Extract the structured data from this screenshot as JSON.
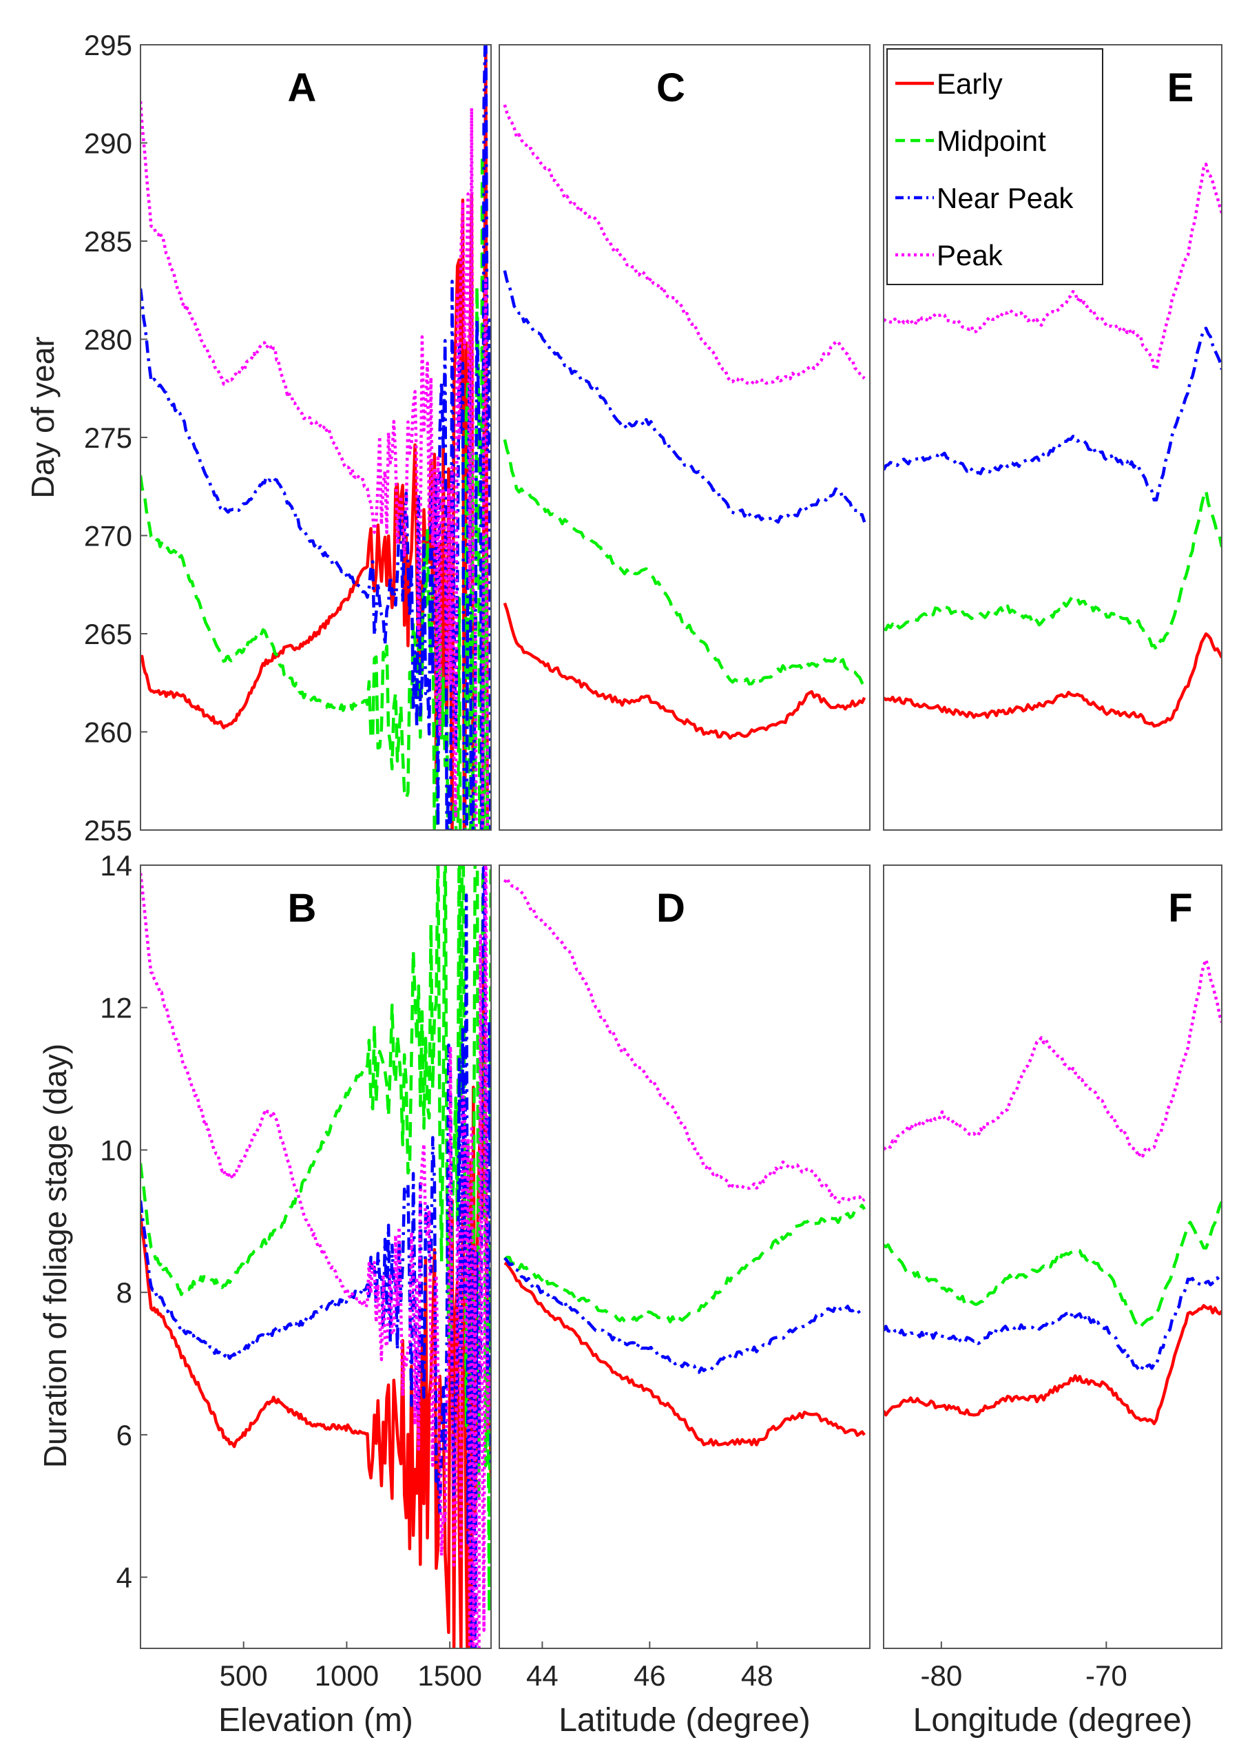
{
  "figure": {
    "ylabel_top": "Day of year",
    "ylabel_bottom": "Duration of foliage stage (day)"
  },
  "legend": {
    "placement": "top-right of panel E",
    "entries": [
      {
        "name": "Early",
        "color": "#ff0000",
        "style": "solid"
      },
      {
        "name": "Midpoint",
        "color": "#00ee00",
        "style": "dashed"
      },
      {
        "name": "Near Peak",
        "color": "#0000ff",
        "style": "dashdot"
      },
      {
        "name": "Peak",
        "color": "#ff00ff",
        "style": "dotted"
      }
    ]
  },
  "chart_data": [
    {
      "panel": "A",
      "type": "line",
      "xlabel": "",
      "ylabel": "Day of year",
      "xlim": [
        0,
        1700
      ],
      "ylim": [
        255,
        295
      ],
      "xticks": [],
      "yticks": [
        255,
        260,
        265,
        270,
        275,
        280,
        285,
        290,
        295
      ],
      "noise_from": 1100,
      "series": [
        {
          "name": "Early",
          "x": [
            0,
            50,
            100,
            200,
            300,
            400,
            450,
            500,
            600,
            700,
            800,
            900,
            1000,
            1100
          ],
          "y": [
            264,
            262,
            262,
            261.8,
            261,
            260.3,
            260.5,
            261.2,
            263.5,
            264.2,
            264.5,
            265.5,
            266.8,
            268.5
          ]
        },
        {
          "name": "Midpoint",
          "x": [
            0,
            50,
            100,
            200,
            300,
            400,
            450,
            500,
            600,
            700,
            800,
            900,
            1000,
            1100
          ],
          "y": [
            273,
            270,
            269.5,
            269,
            266,
            263.6,
            263.8,
            264.2,
            265.2,
            263,
            261.8,
            261.4,
            261.2,
            261.5
          ]
        },
        {
          "name": "Near Peak",
          "x": [
            0,
            50,
            100,
            200,
            300,
            400,
            450,
            500,
            600,
            650,
            700,
            800,
            900,
            1000,
            1100
          ],
          "y": [
            282.5,
            278,
            277.5,
            276,
            273.5,
            271.2,
            271.3,
            271.5,
            272.8,
            273,
            272,
            270,
            269,
            268,
            267
          ]
        },
        {
          "name": "Peak",
          "x": [
            0,
            50,
            100,
            200,
            300,
            400,
            450,
            500,
            600,
            650,
            700,
            800,
            900,
            1000,
            1100
          ],
          "y": [
            292,
            285.8,
            285.3,
            282,
            280,
            277.8,
            278,
            278.5,
            279.8,
            279.5,
            277.5,
            276,
            275.5,
            273.5,
            272.5
          ]
        }
      ]
    },
    {
      "panel": "C",
      "type": "line",
      "xlabel": "",
      "ylabel": "",
      "xlim": [
        43.2,
        50.1
      ],
      "ylim": [
        255,
        295
      ],
      "xticks": [],
      "yticks": [],
      "series": [
        {
          "name": "Early",
          "x": [
            43.3,
            43.5,
            44,
            44.5,
            45,
            45.5,
            46,
            46.5,
            47,
            47.5,
            48,
            48.5,
            49,
            49.5,
            50
          ],
          "y": [
            266.5,
            264.5,
            263.5,
            262.8,
            262,
            261.5,
            261.7,
            260.8,
            260,
            259.8,
            260,
            260.5,
            262,
            261.2,
            261.6
          ]
        },
        {
          "name": "Midpoint",
          "x": [
            43.3,
            43.5,
            44,
            44.5,
            45,
            45.5,
            46,
            46.5,
            47,
            47.5,
            48,
            48.5,
            49,
            49.5,
            50
          ],
          "y": [
            275,
            272.5,
            271.5,
            270.5,
            269.5,
            268.2,
            268.2,
            266,
            264.5,
            262.7,
            262.5,
            263.3,
            263.4,
            263.8,
            262.4
          ]
        },
        {
          "name": "Near Peak",
          "x": [
            43.3,
            43.5,
            44,
            44.5,
            45,
            45.5,
            46,
            46.5,
            47,
            47.5,
            48,
            48.5,
            49,
            49.5,
            50
          ],
          "y": [
            283.5,
            281.5,
            280,
            278.5,
            277.5,
            275.5,
            275.8,
            274,
            273,
            271.3,
            271,
            270.8,
            271.5,
            272.3,
            270.8
          ]
        },
        {
          "name": "Peak",
          "x": [
            43.3,
            43.5,
            44,
            44.5,
            45,
            45.5,
            46,
            46.5,
            47,
            47.5,
            48,
            48.5,
            49,
            49.5,
            50
          ],
          "y": [
            292,
            290.5,
            289,
            287,
            286,
            284,
            283,
            282,
            280,
            278,
            277.8,
            278,
            278.5,
            279.8,
            278
          ]
        }
      ]
    },
    {
      "panel": "E",
      "type": "line",
      "xlabel": "",
      "ylabel": "",
      "xlim": [
        -83.5,
        -63
      ],
      "ylim": [
        255,
        295
      ],
      "xticks": [],
      "yticks": [],
      "series": [
        {
          "name": "Early",
          "x": [
            -83.5,
            -82,
            -80,
            -78,
            -76,
            -74,
            -72,
            -70,
            -68,
            -67,
            -66,
            -65,
            -64,
            -63
          ],
          "y": [
            261.8,
            261.5,
            261.2,
            260.8,
            261,
            261.4,
            262,
            261,
            260.8,
            260.2,
            260.8,
            262.5,
            265,
            263.8
          ]
        },
        {
          "name": "Midpoint",
          "x": [
            -83.5,
            -82,
            -80,
            -78,
            -76,
            -74,
            -72,
            -70,
            -68,
            -67,
            -66,
            -65,
            -64,
            -63
          ],
          "y": [
            265.3,
            265.5,
            266.3,
            265.8,
            266.3,
            265.5,
            266.8,
            266,
            265.5,
            264.2,
            265.5,
            268.5,
            272.3,
            269.5
          ]
        },
        {
          "name": "Near Peak",
          "x": [
            -83.5,
            -82,
            -80,
            -78,
            -76,
            -74,
            -72,
            -70,
            -68,
            -67,
            -66,
            -65,
            -64,
            -63
          ],
          "y": [
            273.5,
            273.8,
            274.2,
            273.2,
            273.5,
            274,
            275,
            274,
            273.5,
            271.8,
            275,
            277.5,
            280.8,
            278.5
          ]
        },
        {
          "name": "Peak",
          "x": [
            -83.5,
            -82,
            -80,
            -78,
            -76,
            -74,
            -72,
            -70,
            -68,
            -67,
            -66,
            -65,
            -64,
            -63
          ],
          "y": [
            281,
            280.8,
            281.2,
            280.5,
            281.5,
            280.8,
            282.3,
            280.8,
            280.2,
            278.5,
            282,
            284.5,
            289,
            286.5
          ]
        }
      ]
    },
    {
      "panel": "B",
      "type": "line",
      "xlabel": "Elevation (m)",
      "ylabel": "Duration of foliage stage (day)",
      "xlim": [
        0,
        1700
      ],
      "ylim": [
        3,
        14
      ],
      "xticks": [
        500,
        1000,
        1500
      ],
      "yticks": [
        4,
        6,
        8,
        10,
        12,
        14
      ],
      "noise_from": 1100,
      "series": [
        {
          "name": "Early",
          "x": [
            0,
            50,
            100,
            200,
            300,
            400,
            450,
            500,
            600,
            650,
            700,
            800,
            900,
            1000,
            1100
          ],
          "y": [
            9.1,
            7.8,
            7.7,
            7.1,
            6.6,
            6,
            5.85,
            6,
            6.4,
            6.5,
            6.4,
            6.2,
            6.1,
            6.1,
            6
          ]
        },
        {
          "name": "Midpoint",
          "x": [
            0,
            50,
            100,
            200,
            300,
            400,
            450,
            500,
            600,
            700,
            800,
            900,
            1000,
            1100
          ],
          "y": [
            9.8,
            8.6,
            8.4,
            8,
            8.2,
            8.1,
            8.2,
            8.4,
            8.7,
            9,
            9.6,
            10.2,
            10.8,
            11.2
          ]
        },
        {
          "name": "Near Peak",
          "x": [
            0,
            50,
            100,
            200,
            300,
            400,
            450,
            500,
            600,
            700,
            800,
            900,
            1000,
            1100
          ],
          "y": [
            9.3,
            8.1,
            7.9,
            7.5,
            7.3,
            7.1,
            7.1,
            7.2,
            7.4,
            7.5,
            7.6,
            7.8,
            7.9,
            8.1
          ]
        },
        {
          "name": "Peak",
          "x": [
            0,
            50,
            100,
            200,
            300,
            400,
            450,
            500,
            600,
            650,
            700,
            800,
            900,
            1000,
            1100
          ],
          "y": [
            13.9,
            12.5,
            12.2,
            11.3,
            10.5,
            9.7,
            9.6,
            9.9,
            10.5,
            10.5,
            10,
            9,
            8.5,
            8,
            7.8
          ]
        }
      ]
    },
    {
      "panel": "D",
      "type": "line",
      "xlabel": "Latitude (degree)",
      "ylabel": "",
      "xlim": [
        43.2,
        50.1
      ],
      "ylim": [
        3,
        14
      ],
      "xticks": [
        44,
        46,
        48
      ],
      "yticks": [],
      "series": [
        {
          "name": "Early",
          "x": [
            43.3,
            43.5,
            44,
            44.5,
            45,
            45.5,
            46,
            46.5,
            47,
            47.5,
            48,
            48.5,
            49,
            49.5,
            50
          ],
          "y": [
            8.4,
            8.2,
            7.8,
            7.5,
            7.1,
            6.8,
            6.6,
            6.3,
            5.9,
            5.9,
            5.9,
            6.2,
            6.3,
            6.1,
            6
          ]
        },
        {
          "name": "Midpoint",
          "x": [
            43.3,
            43.5,
            44,
            44.5,
            45,
            45.5,
            46,
            46.5,
            47,
            47.5,
            48,
            48.5,
            49,
            49.5,
            50
          ],
          "y": [
            8.5,
            8.4,
            8.2,
            8,
            7.8,
            7.6,
            7.7,
            7.6,
            7.8,
            8.2,
            8.5,
            8.8,
            9,
            9,
            9.2
          ]
        },
        {
          "name": "Near Peak",
          "x": [
            43.3,
            43.5,
            44,
            44.5,
            45,
            45.5,
            46,
            46.5,
            47,
            47.5,
            48,
            48.5,
            49,
            49.5,
            50
          ],
          "y": [
            8.5,
            8.3,
            8,
            7.8,
            7.5,
            7.3,
            7.2,
            7,
            6.9,
            7.1,
            7.2,
            7.4,
            7.6,
            7.8,
            7.7
          ]
        },
        {
          "name": "Peak",
          "x": [
            43.3,
            43.5,
            44,
            44.5,
            45,
            45.5,
            46,
            46.5,
            47,
            47.5,
            48,
            48.5,
            49,
            49.5,
            50
          ],
          "y": [
            13.8,
            13.7,
            13.2,
            12.8,
            12,
            11.4,
            11,
            10.5,
            9.8,
            9.5,
            9.5,
            9.8,
            9.7,
            9.3,
            9.3
          ]
        }
      ]
    },
    {
      "panel": "F",
      "type": "line",
      "xlabel": "Longitude (degree)",
      "ylabel": "",
      "xlim": [
        -83.5,
        -63
      ],
      "ylim": [
        3,
        14
      ],
      "xticks": [
        -80,
        -70
      ],
      "yticks": [],
      "series": [
        {
          "name": "Early",
          "x": [
            -83.5,
            -82,
            -80,
            -78,
            -76,
            -74,
            -72,
            -70,
            -68,
            -67,
            -66,
            -65,
            -64,
            -63
          ],
          "y": [
            6.3,
            6.5,
            6.4,
            6.3,
            6.5,
            6.5,
            6.8,
            6.7,
            6.2,
            6.2,
            7,
            7.7,
            7.8,
            7.7
          ]
        },
        {
          "name": "Midpoint",
          "x": [
            -83.5,
            -82,
            -80,
            -78,
            -76,
            -74,
            -72,
            -70,
            -68,
            -67,
            -66,
            -65,
            -64,
            -63
          ],
          "y": [
            8.7,
            8.3,
            8.1,
            7.8,
            8.2,
            8.3,
            8.6,
            8.3,
            7.5,
            7.7,
            8.3,
            9,
            8.6,
            9.3
          ]
        },
        {
          "name": "Near Peak",
          "x": [
            -83.5,
            -82,
            -80,
            -78,
            -76,
            -74,
            -72,
            -70,
            -68,
            -67,
            -66,
            -65,
            -64,
            -63
          ],
          "y": [
            7.5,
            7.4,
            7.4,
            7.3,
            7.5,
            7.5,
            7.7,
            7.5,
            6.9,
            7,
            7.6,
            8.2,
            8.1,
            8.2
          ]
        },
        {
          "name": "Peak",
          "x": [
            -83.5,
            -82,
            -80,
            -78,
            -76,
            -74,
            -72,
            -70,
            -68,
            -67,
            -66,
            -65,
            -64,
            -63
          ],
          "y": [
            10,
            10.3,
            10.5,
            10.2,
            10.6,
            11.6,
            11.1,
            10.6,
            9.9,
            10.1,
            10.7,
            11.5,
            12.7,
            11.8
          ]
        }
      ]
    }
  ]
}
